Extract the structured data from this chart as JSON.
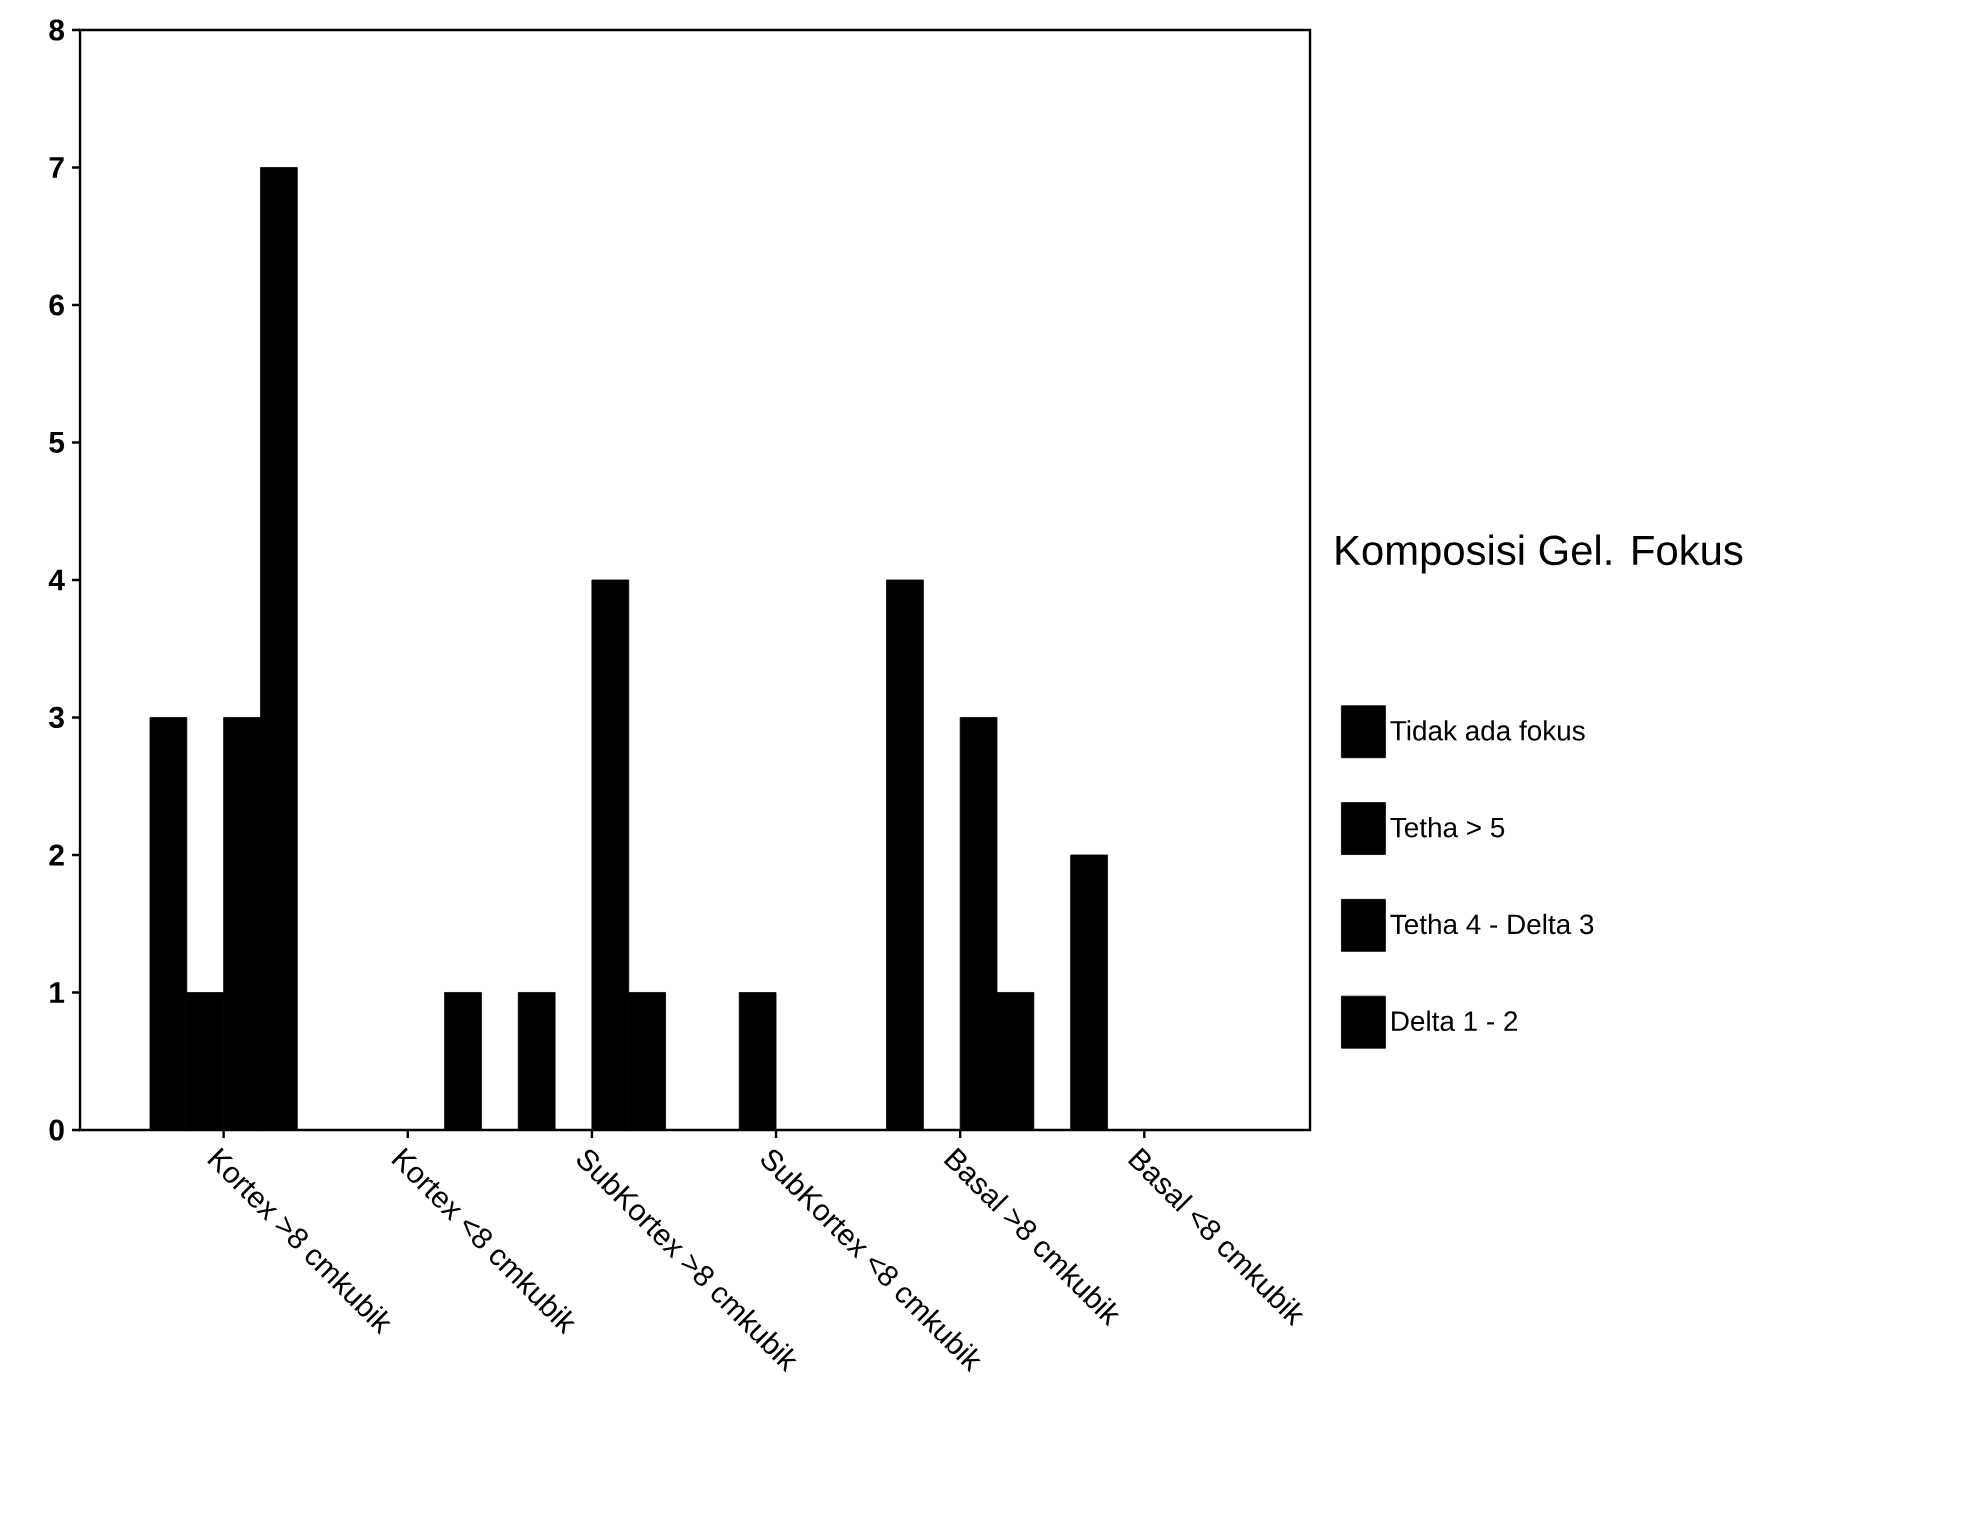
{
  "chart_data": {
    "type": "bar",
    "legend_title": "Komposisi Gel. Fokus",
    "categories": [
      "Kortex >8 cmkubik",
      "Kortex <8 cmkubik",
      "SubKortex >8 cmkubik",
      "SubKortex <8 cmkubik",
      "Basal >8 cmkubik",
      "Basal <8 cmkubik"
    ],
    "series": [
      {
        "name": "Tidak ada fokus",
        "color": "#000000",
        "values": [
          3,
          0,
          1,
          0,
          4,
          2
        ]
      },
      {
        "name": "Tetha > 5",
        "color": "#000000",
        "values": [
          1,
          0,
          0,
          1,
          0,
          0
        ]
      },
      {
        "name": "Tetha 4 - Delta 3",
        "color": "#000000",
        "values": [
          3,
          0,
          4,
          0,
          3,
          0
        ]
      },
      {
        "name": "Delta 1 - 2",
        "color": "#000000",
        "values": [
          7,
          1,
          1,
          0,
          1,
          0
        ]
      }
    ],
    "ylim": [
      0,
      8
    ],
    "yticks": [
      0,
      1,
      2,
      3,
      4,
      5,
      6,
      7,
      8
    ],
    "grid": false,
    "legend": "right"
  }
}
